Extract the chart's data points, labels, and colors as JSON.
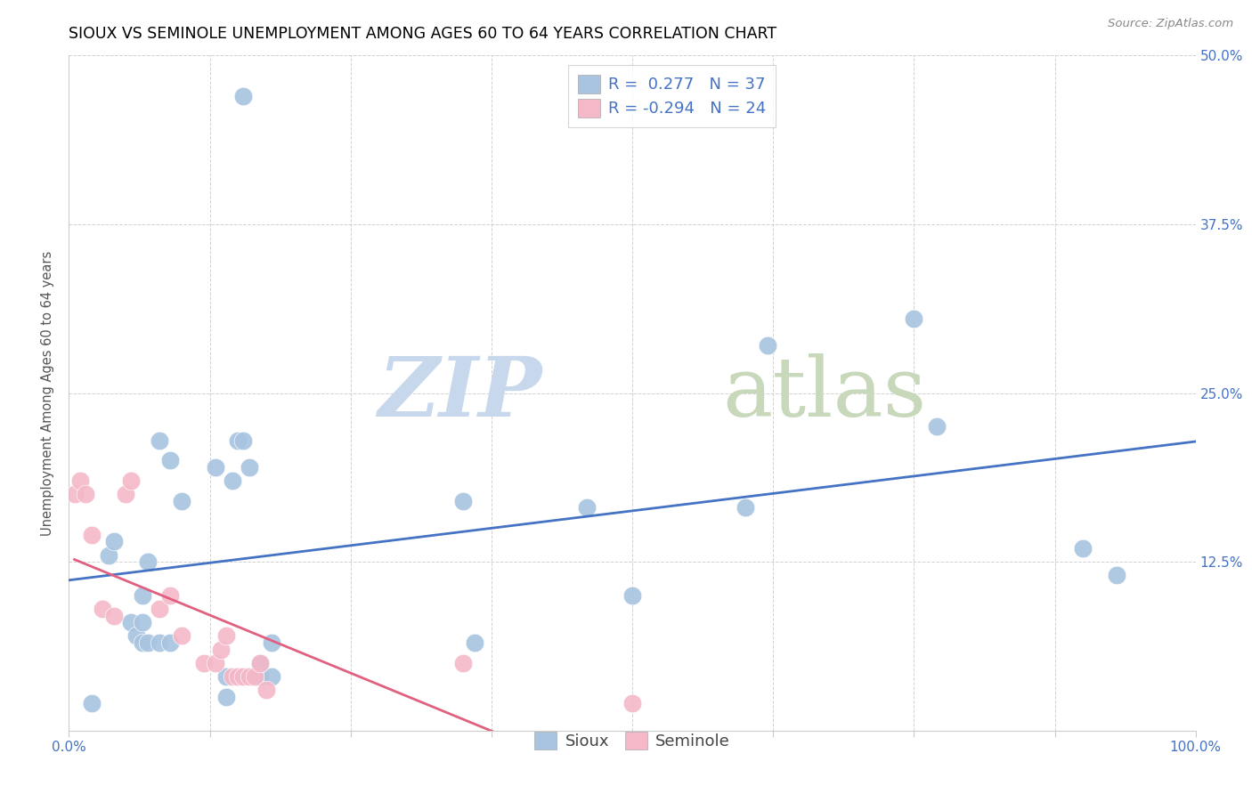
{
  "title": "SIOUX VS SEMINOLE UNEMPLOYMENT AMONG AGES 60 TO 64 YEARS CORRELATION CHART",
  "source": "Source: ZipAtlas.com",
  "ylabel": "Unemployment Among Ages 60 to 64 years",
  "xlim": [
    0,
    1.0
  ],
  "ylim": [
    0,
    0.5
  ],
  "xticks": [
    0.0,
    0.125,
    0.25,
    0.375,
    0.5,
    0.625,
    0.75,
    0.875,
    1.0
  ],
  "xticklabels": [
    "0.0%",
    "",
    "",
    "",
    "",
    "",
    "",
    "",
    "100.0%"
  ],
  "yticks": [
    0.0,
    0.125,
    0.25,
    0.375,
    0.5
  ],
  "yticklabels_right": [
    "",
    "12.5%",
    "25.0%",
    "37.5%",
    "50.0%"
  ],
  "sioux_color": "#a8c4e0",
  "seminole_color": "#f4b8c8",
  "sioux_line_color": "#4472c4",
  "seminole_line_color": "#e06080",
  "seminole_dash_color": "#d4a0b0",
  "legend_r_sioux": "0.277",
  "legend_n_sioux": "37",
  "legend_r_seminole": "-0.294",
  "legend_n_seminole": "24",
  "sioux_x": [
    0.02,
    0.035,
    0.04,
    0.055,
    0.06,
    0.065,
    0.065,
    0.065,
    0.07,
    0.07,
    0.08,
    0.08,
    0.09,
    0.09,
    0.1,
    0.13,
    0.14,
    0.14,
    0.145,
    0.15,
    0.155,
    0.16,
    0.17,
    0.17,
    0.18,
    0.18,
    0.155,
    0.35,
    0.36,
    0.46,
    0.5,
    0.6,
    0.62,
    0.75,
    0.77,
    0.9,
    0.93
  ],
  "sioux_y": [
    0.02,
    0.13,
    0.14,
    0.08,
    0.07,
    0.065,
    0.08,
    0.1,
    0.065,
    0.125,
    0.065,
    0.215,
    0.065,
    0.2,
    0.17,
    0.195,
    0.025,
    0.04,
    0.185,
    0.215,
    0.215,
    0.195,
    0.04,
    0.05,
    0.04,
    0.065,
    0.47,
    0.17,
    0.065,
    0.165,
    0.1,
    0.165,
    0.285,
    0.305,
    0.225,
    0.135,
    0.115
  ],
  "seminole_x": [
    0.005,
    0.01,
    0.015,
    0.02,
    0.03,
    0.04,
    0.05,
    0.055,
    0.08,
    0.09,
    0.1,
    0.12,
    0.13,
    0.135,
    0.14,
    0.145,
    0.15,
    0.155,
    0.16,
    0.165,
    0.17,
    0.175,
    0.35,
    0.5
  ],
  "seminole_y": [
    0.175,
    0.185,
    0.175,
    0.145,
    0.09,
    0.085,
    0.175,
    0.185,
    0.09,
    0.1,
    0.07,
    0.05,
    0.05,
    0.06,
    0.07,
    0.04,
    0.04,
    0.04,
    0.04,
    0.04,
    0.05,
    0.03,
    0.05,
    0.02
  ],
  "background_color": "#ffffff",
  "watermark_zip": "ZIP",
  "watermark_atlas": "atlas",
  "watermark_color_zip": "#c8d8ec",
  "watermark_color_atlas": "#c8d8ba",
  "title_fontsize": 12.5,
  "axis_label_fontsize": 10.5,
  "tick_fontsize": 11,
  "legend_fontsize": 13
}
